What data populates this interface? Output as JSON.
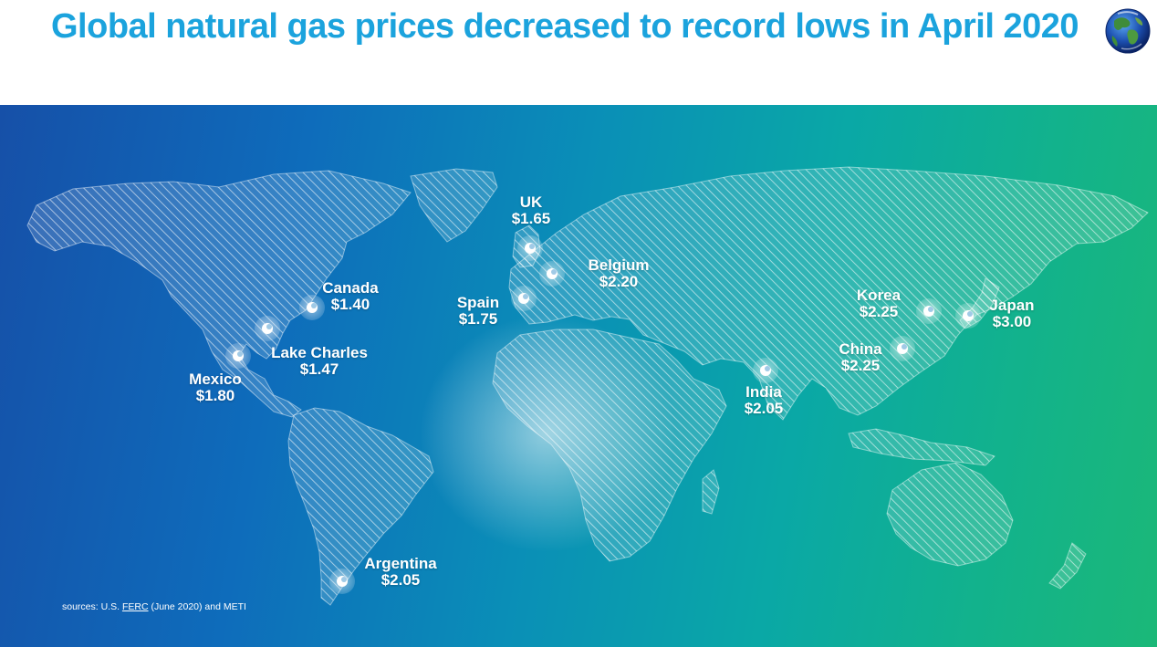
{
  "title": "Global natural gas prices decreased to record lows in April 2020",
  "globe_icon": "earth-globe-icon",
  "colors": {
    "title": "#1ba3dd",
    "label": "#ffffff",
    "background_left": "#1650a8",
    "background_right": "#1bb878"
  },
  "markers": [
    {
      "id": "uk",
      "name": "UK",
      "price": "$1.65"
    },
    {
      "id": "belgium",
      "name": "Belgium",
      "price": "$2.20"
    },
    {
      "id": "spain",
      "name": "Spain",
      "price": "$1.75"
    },
    {
      "id": "canada",
      "name": "Canada",
      "price": "$1.40"
    },
    {
      "id": "lake-charles",
      "name": "Lake Charles",
      "price": "$1.47"
    },
    {
      "id": "mexico",
      "name": "Mexico",
      "price": "$1.80"
    },
    {
      "id": "argentina",
      "name": "Argentina",
      "price": "$2.05"
    },
    {
      "id": "india",
      "name": "India",
      "price": "$2.05"
    },
    {
      "id": "korea",
      "name": "Korea",
      "price": "$2.25"
    },
    {
      "id": "china",
      "name": "China",
      "price": "$2.25"
    },
    {
      "id": "japan",
      "name": "Japan",
      "price": "$3.00"
    }
  ],
  "sources": {
    "prefix": "sources: U.S. ",
    "link": "FERC",
    "suffix": " (June 2020) and METI"
  }
}
